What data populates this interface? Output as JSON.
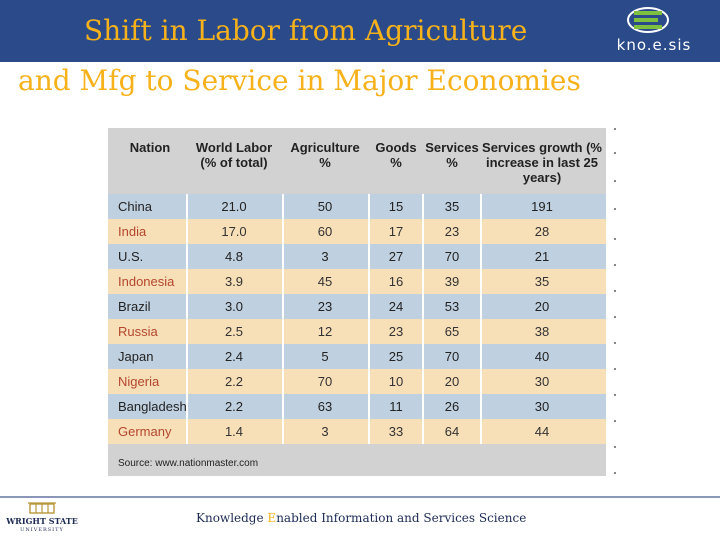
{
  "header": {
    "title_line1": "Shift in Labor from Agriculture",
    "title_line2": "and Mfg to Service in Major Economies",
    "logo_text": "kno.e.sis"
  },
  "table": {
    "headers": [
      "Nation",
      "World Labor (% of total)",
      "Agriculture %",
      "Goods %",
      "Services %",
      "Services growth (% increase in last 25 years)"
    ],
    "rows": [
      {
        "nation": "China",
        "world_labor": "21.0",
        "agriculture": "50",
        "goods": "15",
        "services": "35",
        "growth": "191"
      },
      {
        "nation": "India",
        "world_labor": "17.0",
        "agriculture": "60",
        "goods": "17",
        "services": "23",
        "growth": "28"
      },
      {
        "nation": "U.S.",
        "world_labor": "4.8",
        "agriculture": "3",
        "goods": "27",
        "services": "70",
        "growth": "21"
      },
      {
        "nation": "Indonesia",
        "world_labor": "3.9",
        "agriculture": "45",
        "goods": "16",
        "services": "39",
        "growth": "35"
      },
      {
        "nation": "Brazil",
        "world_labor": "3.0",
        "agriculture": "23",
        "goods": "24",
        "services": "53",
        "growth": "20"
      },
      {
        "nation": "Russia",
        "world_labor": "2.5",
        "agriculture": "12",
        "goods": "23",
        "services": "65",
        "growth": "38"
      },
      {
        "nation": "Japan",
        "world_labor": "2.4",
        "agriculture": "5",
        "goods": "25",
        "services": "70",
        "growth": "40"
      },
      {
        "nation": "Nigeria",
        "world_labor": "2.2",
        "agriculture": "70",
        "goods": "10",
        "services": "20",
        "growth": "30"
      },
      {
        "nation": "Bangladesh",
        "world_labor": "2.2",
        "agriculture": "63",
        "goods": "11",
        "services": "26",
        "growth": "30"
      },
      {
        "nation": "Germany",
        "world_labor": "1.4",
        "agriculture": "3",
        "goods": "33",
        "services": "64",
        "growth": "44"
      }
    ],
    "source": "Source: www.nationmaster.com"
  },
  "footer": {
    "text_k": "Knowledge ",
    "text_e": "E",
    "text_rest": "nabled Information and Services Science",
    "university": "WRIGHT STATE",
    "university_sub": "UNIVERSITY"
  },
  "colors": {
    "title_bar": "#2a4a8a",
    "title_text": "#f7b21b",
    "row_blue": "#bfd0e0",
    "row_tan": "#f7dfb8",
    "nation_tan_text": "#b5462e"
  }
}
